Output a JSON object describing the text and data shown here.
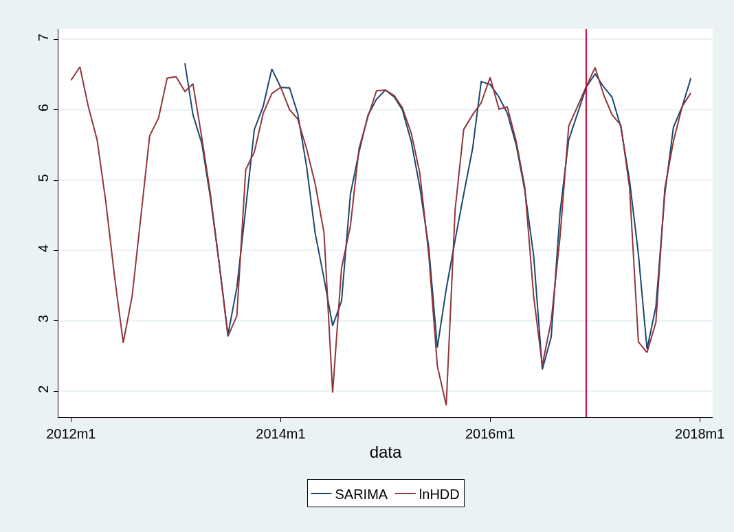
{
  "chart_data": {
    "type": "line",
    "xlabel": "data",
    "x": [
      "2012-01",
      "2012-02",
      "2012-03",
      "2012-04",
      "2012-05",
      "2012-06",
      "2012-07",
      "2012-08",
      "2012-09",
      "2012-10",
      "2012-11",
      "2012-12",
      "2013-01",
      "2013-02",
      "2013-03",
      "2013-04",
      "2013-05",
      "2013-06",
      "2013-07",
      "2013-08",
      "2013-09",
      "2013-10",
      "2013-11",
      "2013-12",
      "2014-01",
      "2014-02",
      "2014-03",
      "2014-04",
      "2014-05",
      "2014-06",
      "2014-07",
      "2014-08",
      "2014-09",
      "2014-10",
      "2014-11",
      "2014-12",
      "2015-01",
      "2015-02",
      "2015-03",
      "2015-04",
      "2015-05",
      "2015-06",
      "2015-07",
      "2015-08",
      "2015-09",
      "2015-10",
      "2015-11",
      "2015-12",
      "2016-01",
      "2016-02",
      "2016-03",
      "2016-04",
      "2016-05",
      "2016-06",
      "2016-07",
      "2016-08",
      "2016-09",
      "2016-10",
      "2016-11",
      "2016-12",
      "2017-01",
      "2017-02",
      "2017-03",
      "2017-04",
      "2017-05",
      "2017-06",
      "2017-07",
      "2017-08",
      "2017-09",
      "2017-10",
      "2017-11",
      "2017-12"
    ],
    "series": [
      {
        "name": "SARIMA",
        "color": "#1a476f",
        "values": [
          null,
          null,
          null,
          null,
          null,
          null,
          null,
          null,
          null,
          null,
          null,
          null,
          null,
          6.66,
          5.93,
          5.52,
          4.75,
          3.8,
          2.8,
          3.47,
          4.6,
          5.72,
          6.05,
          6.58,
          6.32,
          6.31,
          5.95,
          5.2,
          4.25,
          3.6,
          2.93,
          3.28,
          4.8,
          5.4,
          5.92,
          6.15,
          6.28,
          6.18,
          6.0,
          5.55,
          4.9,
          4.05,
          2.62,
          3.45,
          4.15,
          4.8,
          5.45,
          6.4,
          6.36,
          6.18,
          5.95,
          5.5,
          4.85,
          3.92,
          2.31,
          2.77,
          4.55,
          5.57,
          5.95,
          6.32,
          6.51,
          6.32,
          6.18,
          5.75,
          5.0,
          3.95,
          2.6,
          3.2,
          4.8,
          5.75,
          6.05,
          6.45
        ]
      },
      {
        "name": "lnHDD",
        "color": "#90353b",
        "values": [
          6.42,
          6.61,
          6.05,
          5.57,
          4.7,
          3.62,
          2.69,
          3.35,
          4.5,
          5.63,
          5.88,
          6.45,
          6.47,
          6.26,
          6.37,
          5.6,
          4.8,
          3.8,
          2.78,
          3.07,
          5.15,
          5.4,
          5.95,
          6.23,
          6.32,
          6.0,
          5.87,
          5.45,
          4.95,
          4.25,
          1.98,
          3.75,
          4.35,
          5.45,
          5.9,
          6.27,
          6.28,
          6.2,
          6.03,
          5.67,
          5.1,
          3.95,
          2.36,
          1.8,
          4.58,
          5.72,
          5.93,
          6.1,
          6.46,
          6.01,
          6.04,
          5.55,
          4.9,
          3.34,
          2.37,
          3.0,
          4.2,
          5.77,
          6.05,
          6.33,
          6.6,
          6.2,
          5.93,
          5.78,
          4.9,
          2.7,
          2.55,
          2.98,
          4.88,
          5.55,
          6.05,
          6.24
        ]
      }
    ],
    "xlim": [
      "2011-11-18",
      "2018-02-15"
    ],
    "xticks": [
      {
        "value": "2012-01",
        "label": "2012m1"
      },
      {
        "value": "2014-01",
        "label": "2014m1"
      },
      {
        "value": "2016-01",
        "label": "2016m1"
      },
      {
        "value": "2018-01",
        "label": "2018m1"
      }
    ],
    "ylim": [
      1.63,
      7.15
    ],
    "yticks": [
      2,
      3,
      4,
      5,
      6,
      7
    ],
    "ref_lines": [
      {
        "axis": "x",
        "value": "2016-12",
        "color": "#c10534"
      }
    ],
    "grid": "y",
    "legend": "bottom",
    "line_style": "solid",
    "marker": "none"
  }
}
